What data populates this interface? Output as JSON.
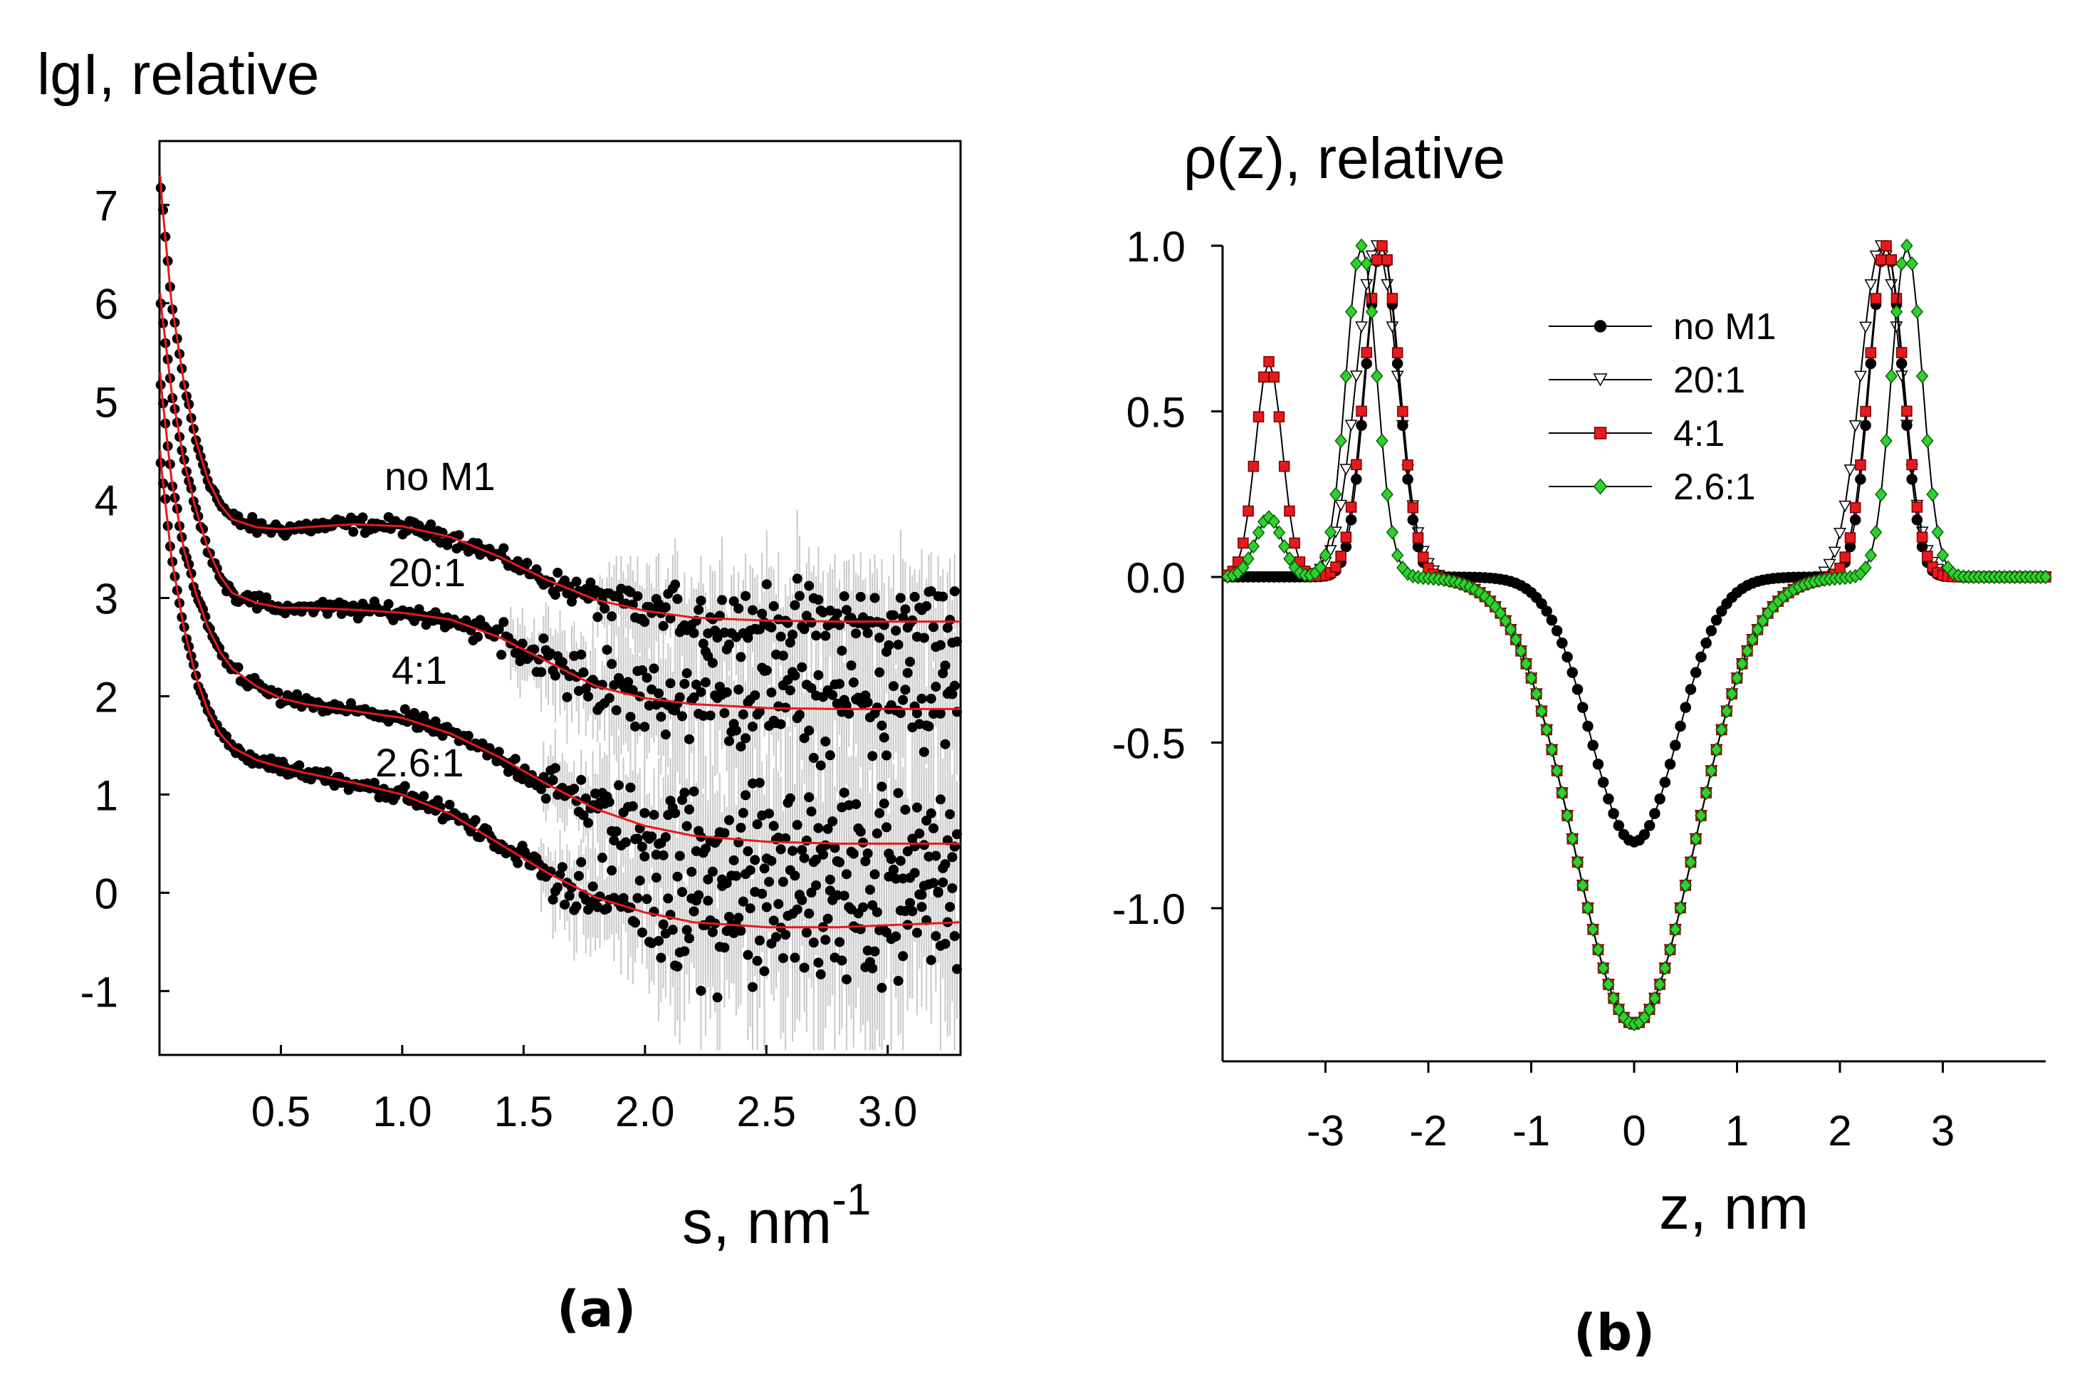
{
  "chart_data": [
    {
      "type": "scatter",
      "panel_label": "(a)",
      "title": "lgI, relative",
      "xlabel": "s, nm",
      "xlabel_superscript": "-1",
      "ylabel": "lgI, relative",
      "xlim": [
        0.0,
        3.3
      ],
      "ylim": [
        -1.65,
        7.65
      ],
      "x_ticks": [
        0.5,
        1.0,
        1.5,
        2.0,
        2.5,
        3.0
      ],
      "x_tick_labels": [
        "0.5",
        "1.0",
        "1.5",
        "2.0",
        "2.5",
        "3.0"
      ],
      "y_ticks": [
        7,
        6,
        5,
        4,
        3,
        2,
        1,
        0,
        -1
      ],
      "y_tick_labels": [
        "7",
        "6",
        "5",
        "4",
        "3",
        "2",
        "1",
        "0",
        "-1"
      ],
      "colors": {
        "points": "#000000",
        "fit": "#e8191c",
        "errorbar": "#c8c8c8"
      },
      "series": [
        {
          "name": "no M1",
          "label_at": [
            1.0,
            4.15
          ],
          "fit": {
            "s": [
              0.0,
              0.05,
              0.1,
              0.15,
              0.2,
              0.25,
              0.3,
              0.4,
              0.5,
              0.6,
              0.8,
              1.0,
              1.2,
              1.4,
              1.6,
              1.8,
              2.0,
              2.2,
              2.5,
              2.8,
              3.0,
              3.3
            ],
            "I": [
              7.3,
              6.0,
              5.2,
              4.6,
              4.2,
              3.95,
              3.8,
              3.72,
              3.7,
              3.72,
              3.75,
              3.73,
              3.62,
              3.42,
              3.18,
              2.98,
              2.87,
              2.8,
              2.77,
              2.76,
              2.76,
              2.76
            ]
          },
          "noise_start": 1.5,
          "noise_amp": 0.3
        },
        {
          "name": "20:1",
          "label_at": [
            1.0,
            3.18
          ],
          "fit": {
            "s": [
              0.0,
              0.05,
              0.1,
              0.15,
              0.2,
              0.25,
              0.3,
              0.4,
              0.5,
              0.6,
              0.8,
              1.0,
              1.2,
              1.4,
              1.6,
              1.8,
              2.0,
              2.2,
              2.5,
              2.8,
              3.0,
              3.3
            ],
            "I": [
              6.1,
              5.1,
              4.4,
              3.9,
              3.5,
              3.22,
              3.05,
              2.95,
              2.9,
              2.9,
              2.88,
              2.85,
              2.78,
              2.6,
              2.35,
              2.1,
              1.98,
              1.92,
              1.88,
              1.87,
              1.87,
              1.87
            ]
          },
          "noise_start": 1.2,
          "noise_amp": 0.4
        },
        {
          "name": "4:1",
          "label_at": [
            1.0,
            2.18
          ],
          "fit": {
            "s": [
              0.0,
              0.05,
              0.1,
              0.15,
              0.2,
              0.25,
              0.3,
              0.4,
              0.5,
              0.6,
              0.8,
              1.0,
              1.2,
              1.4,
              1.6,
              1.8,
              2.0,
              2.2,
              2.5,
              2.8,
              3.0,
              3.3
            ],
            "I": [
              5.3,
              4.2,
              3.5,
              3.05,
              2.7,
              2.45,
              2.28,
              2.1,
              1.98,
              1.92,
              1.85,
              1.78,
              1.62,
              1.38,
              1.1,
              0.85,
              0.68,
              0.58,
              0.52,
              0.5,
              0.5,
              0.5
            ]
          },
          "noise_start": 1.4,
          "noise_amp": 0.5
        },
        {
          "name": "2.6:1",
          "label_at": [
            1.0,
            1.22
          ],
          "fit": {
            "s": [
              0.0,
              0.05,
              0.1,
              0.15,
              0.2,
              0.25,
              0.3,
              0.4,
              0.5,
              0.6,
              0.8,
              1.0,
              1.2,
              1.4,
              1.6,
              1.8,
              2.0,
              2.2,
              2.5,
              2.8,
              3.0,
              3.3
            ],
            "I": [
              4.5,
              3.4,
              2.7,
              2.2,
              1.85,
              1.62,
              1.48,
              1.35,
              1.28,
              1.22,
              1.12,
              1.0,
              0.8,
              0.5,
              0.2,
              -0.05,
              -0.2,
              -0.3,
              -0.35,
              -0.35,
              -0.33,
              -0.3
            ]
          },
          "noise_start": 1.4,
          "noise_amp": 0.55
        }
      ]
    },
    {
      "type": "line",
      "panel_label": "(b)",
      "title": "ρ(z), relative",
      "xlabel": "z, nm",
      "ylabel": "ρ(z), relative",
      "xlim": [
        -4.0,
        4.0
      ],
      "ylim": [
        -1.45,
        1.05
      ],
      "x_ticks": [
        -3,
        -2,
        -1,
        0,
        1,
        2,
        3
      ],
      "x_tick_labels": [
        "-3",
        "-2",
        "-1",
        "0",
        "1",
        "2",
        "3"
      ],
      "y_ticks": [
        1.0,
        0.5,
        0.0,
        -0.5,
        -1.0
      ],
      "y_tick_labels": [
        "1.0",
        "0.5",
        "0.0",
        "-0.5",
        "-1.0"
      ],
      "legend_position": "top-right",
      "z_step": 0.05,
      "series": [
        {
          "name": "no M1",
          "marker": "circle",
          "fill": "#000000",
          "stroke": "#000000",
          "components": [
            {
              "center": -2.45,
              "amp": 1.0,
              "sigma": 0.16
            },
            {
              "center": 2.45,
              "amp": 1.0,
              "sigma": 0.16
            },
            {
              "center": 0.0,
              "amp": -0.8,
              "sigma": 0.42
            }
          ]
        },
        {
          "name": "20:1",
          "marker": "triangle-down",
          "fill": "#ffffff",
          "stroke": "#000000",
          "components": [
            {
              "center": -2.5,
              "amp": 1.0,
              "sigma": 0.2
            },
            {
              "center": 2.4,
              "amp": 1.0,
              "sigma": 0.2
            },
            {
              "center": 0.0,
              "amp": -1.35,
              "sigma": 0.58
            }
          ]
        },
        {
          "name": "4:1",
          "marker": "square",
          "fill": "#e8191c",
          "stroke": "#7a0000",
          "components": [
            {
              "center": -3.55,
              "amp": 0.65,
              "sigma": 0.13
            },
            {
              "center": -2.45,
              "amp": 1.0,
              "sigma": 0.17
            },
            {
              "center": 2.45,
              "amp": 1.0,
              "sigma": 0.17
            },
            {
              "center": 0.0,
              "amp": -1.35,
              "sigma": 0.58
            }
          ]
        },
        {
          "name": "2.6:1",
          "marker": "diamond",
          "fill": "#2fd12f",
          "stroke": "#0b5d0b",
          "components": [
            {
              "center": -3.55,
              "amp": 0.18,
              "sigma": 0.13
            },
            {
              "center": -2.65,
              "amp": 1.0,
              "sigma": 0.15
            },
            {
              "center": 2.65,
              "amp": 1.0,
              "sigma": 0.15
            },
            {
              "center": 0.0,
              "amp": -1.35,
              "sigma": 0.58
            }
          ]
        }
      ]
    }
  ]
}
